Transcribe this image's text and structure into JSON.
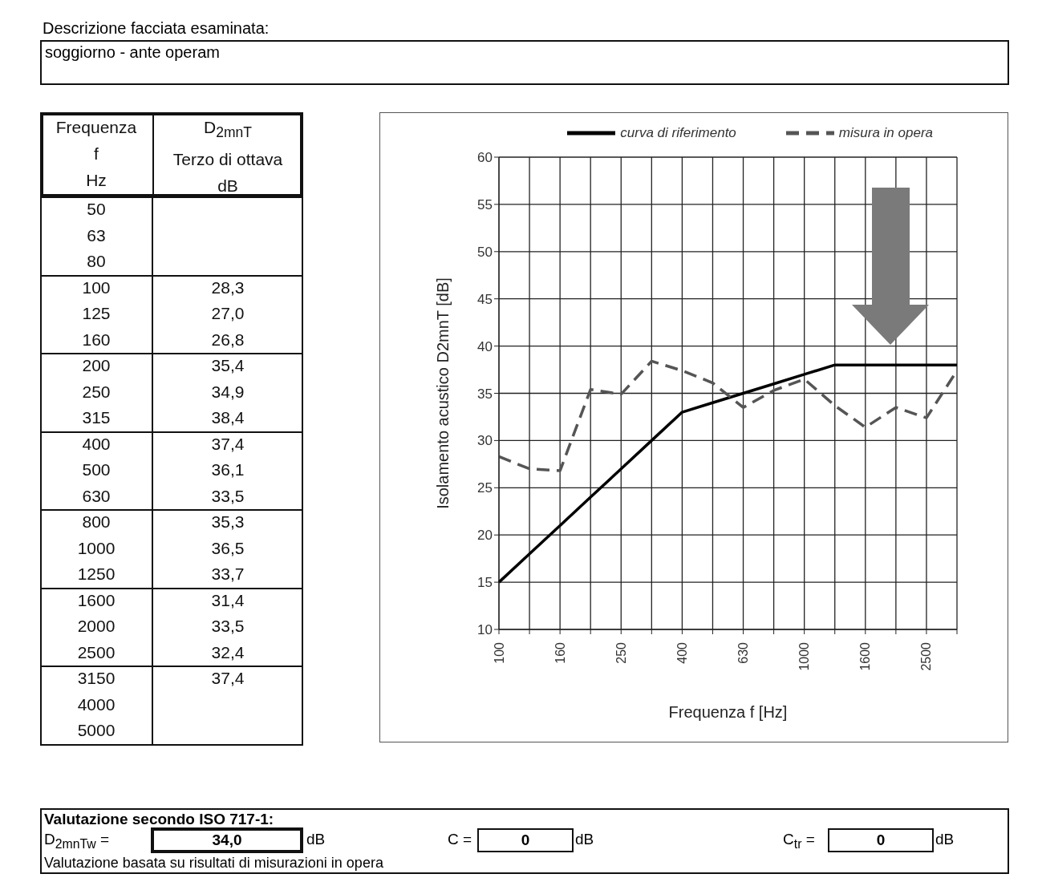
{
  "chart_data": {
    "type": "line",
    "categories": [
      "100",
      null,
      "160",
      null,
      "250",
      null,
      "400",
      null,
      "630",
      null,
      "1000",
      null,
      "1600",
      null,
      "2500",
      null
    ],
    "series": [
      {
        "name": "curva di riferimento",
        "color": "#000000",
        "line_style": "solid",
        "values": [
          15,
          18,
          21,
          24,
          27,
          30,
          33,
          34,
          35,
          36,
          37,
          38,
          38,
          38,
          38,
          38
        ]
      },
      {
        "name": "misura in opera",
        "color": "#555555",
        "line_style": "dashed",
        "values": [
          28.3,
          27.0,
          26.8,
          35.4,
          34.9,
          38.4,
          37.4,
          36.1,
          33.5,
          35.3,
          36.5,
          33.7,
          31.4,
          33.5,
          32.4,
          37.4
        ]
      }
    ],
    "xlabel": "Frequenza f [Hz]",
    "ylabel": "Isolamento acustico D2mnT [dB]",
    "ylim": [
      10,
      60
    ],
    "yticks": [
      10,
      15,
      20,
      25,
      30,
      35,
      40,
      45,
      50,
      55,
      60
    ],
    "grid": true,
    "legend": "top",
    "marker": "none",
    "annotations": [
      "Descrizione facciata esaminata:",
      "soggiorno - ante operam",
      "Frequenza",
      "f",
      "Hz",
      "D$_{2mnT}$",
      "Terzo di ottava",
      "dB",
      "50",
      "63",
      "80",
      "100",
      "125",
      "160",
      "200",
      "250",
      "315",
      "400",
      "500",
      "630",
      "800",
      "1000",
      "1250",
      "1600",
      "2000",
      "2500",
      "3150",
      "4000",
      "5000",
      "Valutazione secondo ISO 717-1:",
      "D$_{2mnTw}$ =",
      "34,0",
      "dB",
      "C =",
      "0",
      "dB",
      "C$_{tr}$ =",
      "0",
      "dB",
      "Valutazione basata su risultati di misurazioni in opera",
      "28,3",
      "27,0",
      "26,8",
      "35,4",
      "34,9",
      "38,4",
      "37,4",
      "36,1",
      "33,5",
      "35,3",
      "36,5",
      "33,7",
      "31,4",
      "33,5",
      "32,4",
      "37,4"
    ]
  }
}
